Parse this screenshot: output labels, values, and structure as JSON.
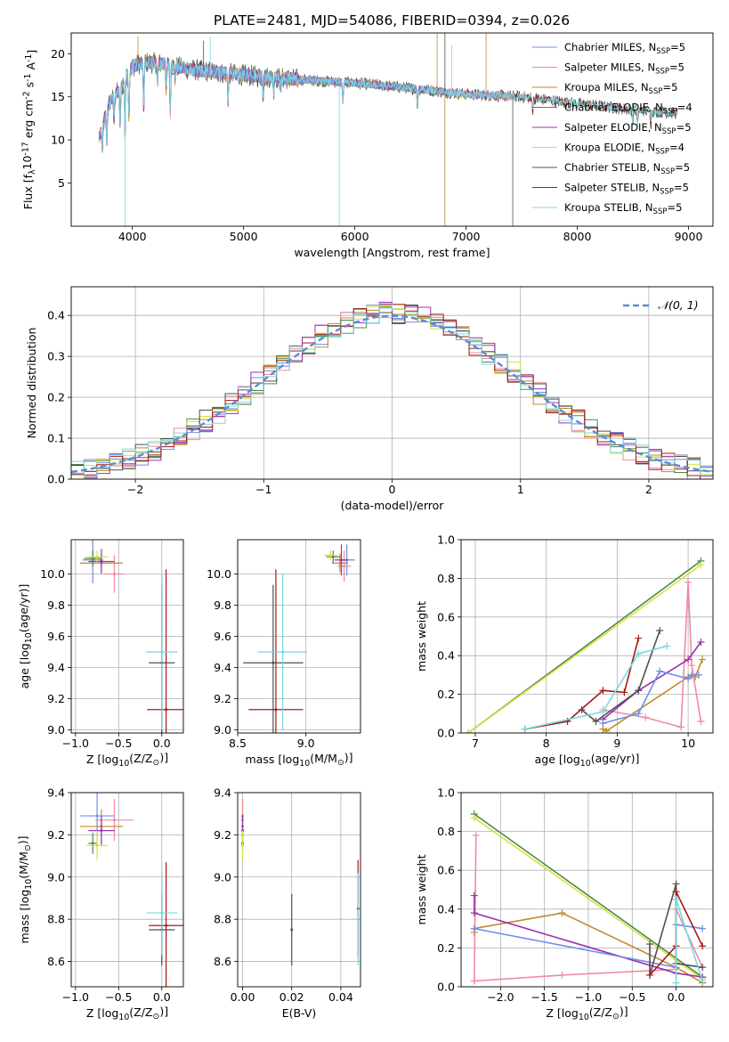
{
  "figure_title": "PLATE=2481, MJD=54086, FIBERID=0394, z=0.026",
  "colors": {
    "chabrier_miles": "#6f8fe8",
    "salpeter_miles": "#f08aa0",
    "kroupa_miles": "#c08a2c",
    "chabrier_elodie": "#4a8a4a",
    "salpeter_elodie": "#9b30b0",
    "kroupa_elodie": "#d8e040",
    "chabrier_stelib": "#505050",
    "salpeter_stelib": "#a81818",
    "kroupa_stelib": "#78d8e0",
    "normal": "#5b8bd6",
    "grid": "#b0b0b0"
  },
  "chart_data": [
    {
      "id": "spectrum",
      "type": "line",
      "ylabel": "Flux [f$_\\lambda$10$^{-17}$ erg cm$^{-2}$ s$^{-1}$ A$^{-1}$]",
      "xlabel": "wavelength [Angstrom, rest frame]",
      "xlim": [
        3450,
        9220
      ],
      "ylim": [
        0,
        22.4
      ],
      "xticks": [
        4000,
        5000,
        6000,
        7000,
        8000,
        9000
      ],
      "yticks": [
        5,
        10,
        15,
        20
      ],
      "grid": false,
      "legend_position": "upper-right",
      "legend": [
        {
          "label": "Chabrier MILES, N",
          "sub": "SSP",
          "tail": "=5",
          "color": "chabrier_miles"
        },
        {
          "label": "Salpeter MILES, N",
          "sub": "SSP",
          "tail": "=5",
          "color": "salpeter_miles"
        },
        {
          "label": "Kroupa MILES, N",
          "sub": "SSP",
          "tail": "=5",
          "color": "kroupa_miles"
        },
        {
          "label": "Chabrier ELODIE, N",
          "sub": "SSP",
          "tail": "=4",
          "color": "chabrier_elodie"
        },
        {
          "label": "Salpeter ELODIE, N",
          "sub": "SSP",
          "tail": "=5",
          "color": "salpeter_elodie"
        },
        {
          "label": "Kroupa ELODIE, N",
          "sub": "SSP",
          "tail": "=4",
          "color": "kroupa_elodie"
        },
        {
          "label": "Chabrier STELIB, N",
          "sub": "SSP",
          "tail": "=5",
          "color": "chabrier_stelib"
        },
        {
          "label": "Salpeter STELIB, N",
          "sub": "SSP",
          "tail": "=5",
          "color": "salpeter_stelib"
        },
        {
          "label": "Kroupa STELIB, N",
          "sub": "SSP",
          "tail": "=5",
          "color": "kroupa_stelib"
        }
      ],
      "continuum": [
        [
          3700,
          10.2
        ],
        [
          3800,
          14.5
        ],
        [
          3900,
          16.0
        ],
        [
          4000,
          18.5
        ],
        [
          4100,
          19.0
        ],
        [
          4300,
          18.8
        ],
        [
          4500,
          18.2
        ],
        [
          5000,
          17.5
        ],
        [
          5500,
          17.0
        ],
        [
          6000,
          16.6
        ],
        [
          6500,
          16.0
        ],
        [
          7000,
          15.3
        ],
        [
          7500,
          15.0
        ],
        [
          8000,
          14.2
        ],
        [
          8500,
          13.5
        ],
        [
          9000,
          13.0
        ],
        [
          9200,
          13.0
        ]
      ],
      "features": [
        [
          3730,
          -2.5
        ],
        [
          3770,
          -3.5
        ],
        [
          3835,
          -3.0
        ],
        [
          3890,
          -4.2
        ],
        [
          3934,
          -6.5
        ],
        [
          3969,
          -5.0
        ],
        [
          4102,
          -5.5
        ],
        [
          4227,
          -2.0
        ],
        [
          4304,
          -3.0
        ],
        [
          4340,
          -5.5
        ],
        [
          4384,
          -1.5
        ],
        [
          4861,
          -3.0
        ],
        [
          5175,
          -2.2
        ],
        [
          5270,
          -1.5
        ],
        [
          5335,
          -1.0
        ],
        [
          5893,
          -2.2
        ],
        [
          6563,
          -2.0
        ],
        [
          7600,
          -1.5
        ],
        [
          8498,
          -1.2
        ],
        [
          8542,
          -1.8
        ],
        [
          8662,
          -1.5
        ]
      ],
      "spikes": [
        [
          5860,
          0
        ],
        [
          6810,
          0
        ],
        [
          7420,
          0
        ],
        [
          3935,
          0
        ],
        [
          4050,
          22.0
        ],
        [
          4640,
          21.5
        ],
        [
          4700,
          22.0
        ],
        [
          6740,
          22.4
        ],
        [
          6810,
          22.4
        ],
        [
          6870,
          21.0
        ],
        [
          7180,
          22.4
        ]
      ]
    },
    {
      "id": "residual_histogram",
      "type": "line",
      "ylabel": "Normed distribution",
      "xlabel": "(data-model)/error",
      "xlim": [
        -2.5,
        2.5
      ],
      "ylim": [
        0,
        0.47
      ],
      "xticks": [
        -2,
        -1,
        0,
        1,
        2
      ],
      "yticks": [
        0.0,
        0.1,
        0.2,
        0.3,
        0.4
      ],
      "grid": true,
      "bins": 50,
      "legend": [
        {
          "label": "𝒩(0, 1)",
          "color": "normal",
          "style": "dashed"
        }
      ]
    },
    {
      "id": "age_vs_Z",
      "type": "scatter",
      "xlabel": "Z [log$_{10}$(Z/Z$_\\odot$)]",
      "ylabel": "age  [log$_{10}$(age/yr)]",
      "xlim": [
        -1.05,
        0.25
      ],
      "ylim": [
        8.98,
        10.22
      ],
      "xticks": [
        -1.0,
        -0.5,
        0.0
      ],
      "yticks": [
        9.0,
        9.2,
        9.4,
        9.6,
        9.8,
        10.0
      ],
      "points": [
        {
          "key": "chabrier_miles",
          "x": -0.8,
          "y": 10.09,
          "xerr": 0.12,
          "yerr": 0.15
        },
        {
          "key": "salpeter_miles",
          "x": -0.55,
          "y": 10.0,
          "xerr": 0.12,
          "yerr": 0.12
        },
        {
          "key": "kroupa_miles",
          "x": -0.7,
          "y": 10.07,
          "xerr": 0.25,
          "yerr": 0.06
        },
        {
          "key": "chabrier_elodie",
          "x": -0.8,
          "y": 10.1,
          "xerr": 0.1,
          "yerr": 0.05
        },
        {
          "key": "salpeter_elodie",
          "x": -0.7,
          "y": 10.08,
          "xerr": 0.15,
          "yerr": 0.08
        },
        {
          "key": "kroupa_elodie",
          "x": -0.75,
          "y": 10.11,
          "xerr": 0.12,
          "yerr": 0.04
        },
        {
          "key": "chabrier_stelib",
          "x": 0.0,
          "y": 9.43,
          "xerr": 0.15,
          "yerr": 0.5
        },
        {
          "key": "salpeter_stelib",
          "x": 0.05,
          "y": 9.13,
          "xerr": 0.22,
          "yerr": 0.9
        },
        {
          "key": "kroupa_stelib",
          "x": 0.0,
          "y": 9.5,
          "xerr": 0.18,
          "yerr": 0.5
        }
      ]
    },
    {
      "id": "age_vs_mass",
      "type": "scatter",
      "xlabel": "mass [log$_{10}$(M/M$_\\odot$)]",
      "ylabel": "",
      "xlim": [
        8.5,
        9.4
      ],
      "ylim": [
        8.98,
        10.22
      ],
      "xticks": [
        8.5,
        9.0
      ],
      "yticks": [
        9.0,
        9.2,
        9.4,
        9.6,
        9.8,
        10.0
      ],
      "points": [
        {
          "key": "chabrier_miles",
          "x": 9.3,
          "y": 10.09,
          "xerr": 0.06,
          "yerr": 0.1
        },
        {
          "key": "salpeter_miles",
          "x": 9.28,
          "y": 10.05,
          "xerr": 0.05,
          "yerr": 0.1
        },
        {
          "key": "kroupa_miles",
          "x": 9.25,
          "y": 10.07,
          "xerr": 0.06,
          "yerr": 0.06
        },
        {
          "key": "chabrier_elodie",
          "x": 9.2,
          "y": 10.11,
          "xerr": 0.05,
          "yerr": 0.04
        },
        {
          "key": "salpeter_elodie",
          "x": 9.26,
          "y": 10.09,
          "xerr": 0.05,
          "yerr": 0.1
        },
        {
          "key": "kroupa_elodie",
          "x": 9.18,
          "y": 10.12,
          "xerr": 0.05,
          "yerr": 0.03
        },
        {
          "key": "chabrier_stelib",
          "x": 8.76,
          "y": 9.43,
          "xerr": 0.22,
          "yerr": 0.5
        },
        {
          "key": "salpeter_stelib",
          "x": 8.78,
          "y": 9.13,
          "xerr": 0.2,
          "yerr": 0.9
        },
        {
          "key": "kroupa_stelib",
          "x": 8.83,
          "y": 9.5,
          "xerr": 0.18,
          "yerr": 0.5
        }
      ]
    },
    {
      "id": "massweight_vs_age",
      "type": "line",
      "xlabel": "age  [log$_{10}$(age/yr)]",
      "ylabel": "mass weight",
      "xlim": [
        6.8,
        10.35
      ],
      "ylim": [
        0,
        1.0
      ],
      "xticks": [
        7,
        8,
        9,
        10
      ],
      "yticks": [
        0.0,
        0.2,
        0.4,
        0.6,
        0.8,
        1.0
      ],
      "grid": true,
      "series": [
        {
          "key": "chabrier_elodie",
          "x": [
            6.9,
            10.18
          ],
          "y": [
            0.0,
            0.89
          ]
        },
        {
          "key": "kroupa_elodie",
          "x": [
            6.9,
            10.18
          ],
          "y": [
            0.0,
            0.87
          ]
        },
        {
          "key": "kroupa_miles",
          "x": [
            8.8,
            8.85,
            10.0,
            10.05,
            10.1,
            10.2
          ],
          "y": [
            0.02,
            0.01,
            0.29,
            0.3,
            0.29,
            0.38
          ]
        },
        {
          "key": "salpeter_miles",
          "x": [
            8.8,
            9.4,
            9.9,
            10.0,
            10.05,
            10.18
          ],
          "y": [
            0.12,
            0.08,
            0.03,
            0.78,
            0.35,
            0.06
          ]
        },
        {
          "key": "salpeter_elodie",
          "x": [
            8.8,
            9.3,
            10.0,
            10.18
          ],
          "y": [
            0.07,
            0.22,
            0.38,
            0.47
          ]
        },
        {
          "key": "chabrier_miles",
          "x": [
            8.8,
            9.3,
            9.6,
            10.0,
            10.05,
            10.15
          ],
          "y": [
            0.05,
            0.1,
            0.32,
            0.28,
            0.3,
            0.3
          ]
        },
        {
          "key": "chabrier_stelib",
          "x": [
            8.5,
            8.7,
            9.3,
            9.6
          ],
          "y": [
            0.12,
            0.06,
            0.22,
            0.53
          ]
        },
        {
          "key": "salpeter_stelib",
          "x": [
            7.7,
            8.3,
            8.8,
            9.1,
            9.3
          ],
          "y": [
            0.02,
            0.06,
            0.22,
            0.21,
            0.49
          ]
        },
        {
          "key": "kroupa_stelib",
          "x": [
            7.7,
            8.8,
            9.3,
            9.7
          ],
          "y": [
            0.02,
            0.11,
            0.41,
            0.45
          ]
        }
      ]
    },
    {
      "id": "mass_vs_Z",
      "type": "scatter",
      "xlabel": "Z [log$_{10}$(Z/Z$_\\odot$)]",
      "ylabel": "mass [log$_{10}$(M/M$_\\odot$)]",
      "xlim": [
        -1.05,
        0.25
      ],
      "ylim": [
        8.48,
        9.4
      ],
      "xticks": [
        -1.0,
        -0.5,
        0.0
      ],
      "yticks": [
        8.6,
        8.8,
        9.0,
        9.2,
        9.4
      ],
      "points": [
        {
          "key": "chabrier_miles",
          "x": -0.75,
          "y": 9.29,
          "xerr": 0.2,
          "yerr": 0.12
        },
        {
          "key": "salpeter_miles",
          "x": -0.55,
          "y": 9.27,
          "xerr": 0.22,
          "yerr": 0.1
        },
        {
          "key": "kroupa_miles",
          "x": -0.7,
          "y": 9.24,
          "xerr": 0.25,
          "yerr": 0.08
        },
        {
          "key": "chabrier_elodie",
          "x": -0.8,
          "y": 9.16,
          "xerr": 0.05,
          "yerr": 0.05
        },
        {
          "key": "salpeter_elodie",
          "x": -0.7,
          "y": 9.22,
          "xerr": 0.15,
          "yerr": 0.07
        },
        {
          "key": "kroupa_elodie",
          "x": -0.75,
          "y": 9.15,
          "xerr": 0.12,
          "yerr": 0.07
        },
        {
          "key": "chabrier_stelib",
          "x": 0.0,
          "y": 8.75,
          "xerr": 0.15,
          "yerr": 0.17
        },
        {
          "key": "salpeter_stelib",
          "x": 0.05,
          "y": 8.77,
          "xerr": 0.2,
          "yerr": 0.3
        },
        {
          "key": "kroupa_stelib",
          "x": 0.0,
          "y": 8.83,
          "xerr": 0.18,
          "yerr": 0.2
        }
      ]
    },
    {
      "id": "mass_vs_ebv",
      "type": "scatter",
      "xlabel": "E(B-V)",
      "ylabel": "",
      "xlim": [
        -0.002,
        0.048
      ],
      "ylim": [
        8.48,
        9.4
      ],
      "xticks": [
        0.0,
        0.02,
        0.04
      ],
      "yticks": [
        8.6,
        8.8,
        9.0,
        9.2,
        9.4
      ],
      "points": [
        {
          "key": "chabrier_miles",
          "x": 0.0,
          "y": 9.29,
          "xerr": 0,
          "yerr": 0.08
        },
        {
          "key": "salpeter_miles",
          "x": 0.0,
          "y": 9.27,
          "xerr": 0,
          "yerr": 0.1
        },
        {
          "key": "kroupa_miles",
          "x": 0.0,
          "y": 9.24,
          "xerr": 0,
          "yerr": 0.06
        },
        {
          "key": "chabrier_elodie",
          "x": 0.0,
          "y": 9.16,
          "xerr": 0,
          "yerr": 0.05
        },
        {
          "key": "salpeter_elodie",
          "x": 0.0,
          "y": 9.22,
          "xerr": 0,
          "yerr": 0.07
        },
        {
          "key": "kroupa_elodie",
          "x": 0.0,
          "y": 9.15,
          "xerr": 0,
          "yerr": 0.07
        },
        {
          "key": "chabrier_stelib",
          "x": 0.02,
          "y": 8.75,
          "xerr": 0,
          "yerr": 0.17
        },
        {
          "key": "salpeter_stelib",
          "x": 0.047,
          "y": 8.85,
          "xerr": 0,
          "yerr": 0.23
        },
        {
          "key": "kroupa_stelib",
          "x": 0.047,
          "y": 8.8,
          "xerr": 0,
          "yerr": 0.22
        }
      ]
    },
    {
      "id": "massweight_vs_Z",
      "type": "line",
      "xlabel": "Z [log$_{10}$(Z/Z$_\\odot$)]",
      "ylabel": "mass weight",
      "xlim": [
        -2.45,
        0.42
      ],
      "ylim": [
        0,
        1.0
      ],
      "xticks": [
        -2.0,
        -1.5,
        -1.0,
        -0.5,
        0.0
      ],
      "yticks": [
        0.0,
        0.2,
        0.4,
        0.6,
        0.8,
        1.0
      ],
      "grid": true,
      "series": [
        {
          "key": "chabrier_elodie",
          "x": [
            -2.3,
            0.3
          ],
          "y": [
            0.89,
            0.05
          ]
        },
        {
          "key": "kroupa_elodie",
          "x": [
            -2.3,
            0.3
          ],
          "y": [
            0.87,
            0.04
          ]
        },
        {
          "key": "kroupa_miles",
          "x": [
            -2.3,
            -2.3,
            -1.3,
            0.0,
            0.3
          ],
          "y": [
            0.28,
            0.3,
            0.38,
            0.1,
            0.02
          ]
        },
        {
          "key": "salpeter_miles",
          "x": [
            -2.3,
            -2.28,
            -2.3,
            -1.3,
            0.0,
            0.0,
            0.3
          ],
          "y": [
            0.03,
            0.78,
            0.03,
            0.06,
            0.09,
            0.4,
            0.1
          ]
        },
        {
          "key": "salpeter_elodie",
          "x": [
            -2.3,
            -2.3,
            0.0,
            0.3
          ],
          "y": [
            0.47,
            0.38,
            0.07,
            0.05
          ]
        },
        {
          "key": "chabrier_miles",
          "x": [
            -2.3,
            0.0,
            0.0,
            0.3
          ],
          "y": [
            0.3,
            0.1,
            0.32,
            0.3
          ]
        },
        {
          "key": "chabrier_stelib",
          "x": [
            -0.3,
            -0.3,
            0.0,
            0.0,
            0.3
          ],
          "y": [
            0.22,
            0.06,
            0.53,
            0.12,
            0.1
          ]
        },
        {
          "key": "salpeter_stelib",
          "x": [
            -0.3,
            0.0,
            0.0,
            0.3
          ],
          "y": [
            0.06,
            0.21,
            0.49,
            0.21
          ]
        },
        {
          "key": "kroupa_stelib",
          "x": [
            0.0,
            0.0,
            0.3
          ],
          "y": [
            0.02,
            0.45,
            0.03
          ]
        }
      ]
    }
  ]
}
